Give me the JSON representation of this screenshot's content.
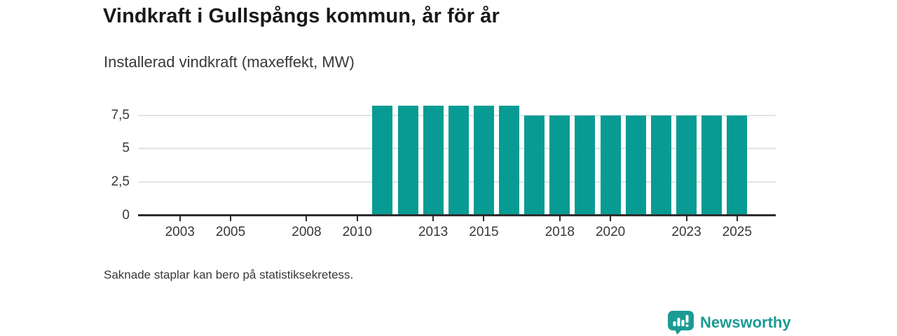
{
  "colors": {
    "bar": "#089b94",
    "axis": "#2e2e2e",
    "grid": "#e3e3e3",
    "text": "#383838",
    "title": "#191919",
    "brand": "#1b9b93"
  },
  "footer": {
    "brand": "Newsworthy"
  },
  "chart_data": {
    "type": "bar",
    "title": "Vindkraft i Gullspångs kommun, år för år",
    "subtitle": "Installerad vindkraft (maxeffekt, MW)",
    "note": "Saknade staplar kan bero på statistiksekretess.",
    "ylabel": "MW",
    "xlabel": "",
    "ylim": [
      0,
      8.8
    ],
    "grid": true,
    "legend": false,
    "years": [
      2002,
      2003,
      2004,
      2005,
      2006,
      2007,
      2008,
      2009,
      2010,
      2011,
      2012,
      2013,
      2014,
      2015,
      2016,
      2017,
      2018,
      2019,
      2020,
      2021,
      2022,
      2023,
      2024,
      2025
    ],
    "values": [
      null,
      null,
      null,
      null,
      null,
      null,
      null,
      null,
      null,
      8.2,
      8.2,
      8.2,
      8.2,
      8.2,
      8.2,
      7.5,
      7.5,
      7.5,
      7.5,
      7.5,
      7.5,
      7.5,
      7.5,
      7.5
    ],
    "y_ticks": [
      {
        "value": 0,
        "label": "0"
      },
      {
        "value": 2.5,
        "label": "2,5"
      },
      {
        "value": 5,
        "label": "5"
      },
      {
        "value": 7.5,
        "label": "7,5"
      }
    ],
    "x_ticks": [
      {
        "year": 2003,
        "label": "2003"
      },
      {
        "year": 2005,
        "label": "2005"
      },
      {
        "year": 2008,
        "label": "2008"
      },
      {
        "year": 2010,
        "label": "2010"
      },
      {
        "year": 2013,
        "label": "2013"
      },
      {
        "year": 2015,
        "label": "2015"
      },
      {
        "year": 2018,
        "label": "2018"
      },
      {
        "year": 2020,
        "label": "2020"
      },
      {
        "year": 2023,
        "label": "2023"
      },
      {
        "year": 2025,
        "label": "2025"
      }
    ]
  }
}
